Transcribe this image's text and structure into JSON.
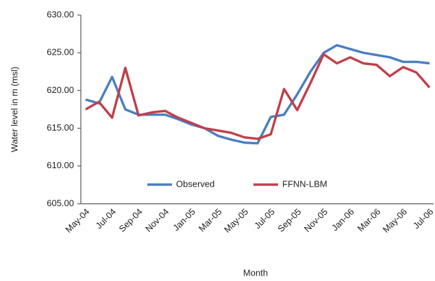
{
  "chart_data": {
    "type": "line",
    "x_label": "Month",
    "y_label": "Water level in m (msl)",
    "categories": [
      "May-04",
      null,
      "Jul-04",
      null,
      "Sep-04",
      null,
      "Nov-04",
      null,
      "Jan-05",
      null,
      "Mar-05",
      null,
      "May-05",
      null,
      "Jul-05",
      null,
      "Sep-05",
      null,
      "Nov-05",
      null,
      "Jan-06",
      null,
      "Mar-06",
      null,
      "May-06",
      null,
      "Jul-06"
    ],
    "series": [
      {
        "name": "Observed",
        "color": "#4a7fc1",
        "values": [
          618.8,
          618.3,
          621.8,
          617.5,
          616.8,
          616.8,
          616.8,
          616.2,
          615.5,
          615.0,
          614.0,
          613.5,
          613.1,
          613.0,
          616.5,
          616.8,
          619.5,
          622.5,
          625.0,
          626.0,
          625.5,
          625.0,
          624.7,
          624.4,
          623.8,
          623.8,
          623.6
        ]
      },
      {
        "name": "FFNN-LBM",
        "color": "#c0404a",
        "values": [
          617.5,
          618.5,
          616.4,
          623.0,
          616.7,
          617.1,
          617.3,
          616.4,
          615.7,
          615.0,
          614.7,
          614.4,
          613.8,
          613.6,
          614.2,
          620.2,
          617.4,
          621.0,
          624.8,
          623.6,
          624.4,
          623.6,
          623.4,
          621.9,
          623.1,
          622.4,
          620.4
        ]
      }
    ],
    "ylim": [
      605,
      630
    ],
    "yticks": [
      {
        "value": 605,
        "label": "605.00"
      },
      {
        "value": 610,
        "label": "610.00"
      },
      {
        "value": 615,
        "label": "615.00"
      },
      {
        "value": 620,
        "label": "620.00"
      },
      {
        "value": 625,
        "label": "625.00"
      },
      {
        "value": 630,
        "label": "630.00"
      }
    ],
    "grid": false,
    "legend": "bottom"
  }
}
